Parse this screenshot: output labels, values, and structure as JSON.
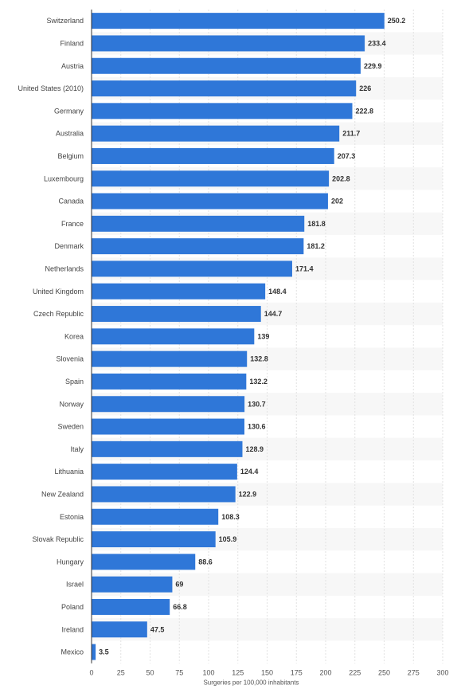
{
  "chart_data": {
    "type": "bar",
    "orientation": "horizontal",
    "categories": [
      "Switzerland",
      "Finland",
      "Austria",
      "United States (2010)",
      "Germany",
      "Australia",
      "Belgium",
      "Luxembourg",
      "Canada",
      "France",
      "Denmark",
      "Netherlands",
      "United Kingdom",
      "Czech Republic",
      "Korea",
      "Slovenia",
      "Spain",
      "Norway",
      "Sweden",
      "Italy",
      "Lithuania",
      "New Zealand",
      "Estonia",
      "Slovak Republic",
      "Hungary",
      "Israel",
      "Poland",
      "Ireland",
      "Mexico"
    ],
    "values": [
      250.2,
      233.4,
      229.9,
      226,
      222.8,
      211.7,
      207.3,
      202.8,
      202,
      181.8,
      181.2,
      171.4,
      148.4,
      144.7,
      139,
      132.8,
      132.2,
      130.7,
      130.6,
      128.9,
      124.4,
      122.9,
      108.3,
      105.9,
      88.6,
      69,
      66.8,
      47.5,
      3.5
    ],
    "value_labels": [
      "250.2",
      "233.4",
      "229.9",
      "226",
      "222.8",
      "211.7",
      "207.3",
      "202.8",
      "202",
      "181.8",
      "181.2",
      "171.4",
      "148.4",
      "144.7",
      "139",
      "132.8",
      "132.2",
      "130.7",
      "130.6",
      "128.9",
      "124.4",
      "122.9",
      "108.3",
      "105.9",
      "88.6",
      "69",
      "66.8",
      "47.5",
      "3.5"
    ],
    "xlabel": "Surgeries per 100,000 inhabitants",
    "xlim": [
      0,
      300
    ],
    "xticks": [
      0,
      25,
      50,
      75,
      100,
      125,
      150,
      175,
      200,
      225,
      250,
      275,
      300
    ],
    "xtick_labels": [
      "0",
      "25",
      "50",
      "75",
      "100",
      "125",
      "150",
      "175",
      "200",
      "225",
      "250",
      "275",
      "300"
    ],
    "grid": true,
    "legend": "none",
    "colors": {
      "bar": "#2f77d8",
      "stripe": "#f7f7f7",
      "grid": "#e2e2e2",
      "axis": "#333333"
    }
  }
}
